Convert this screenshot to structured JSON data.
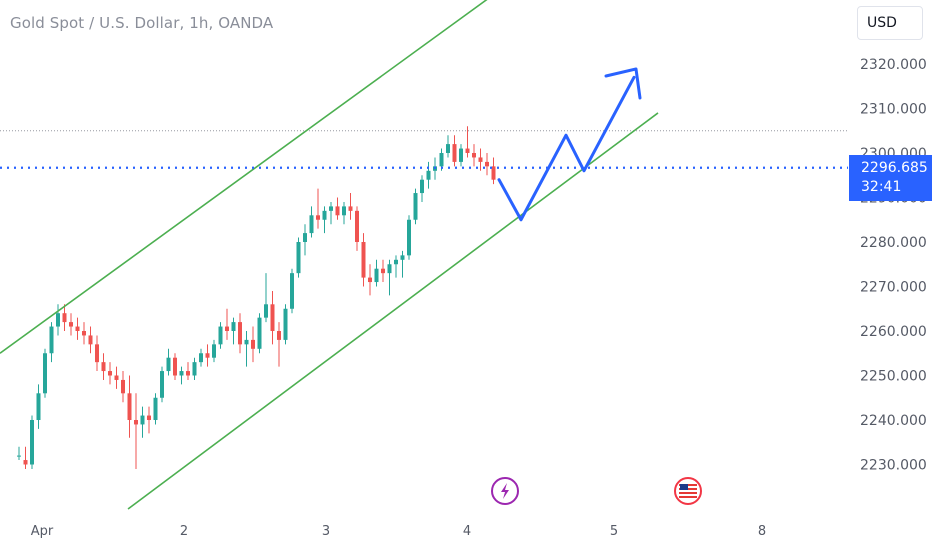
{
  "header": {
    "title": "Gold Spot / U.S. Dollar, 1h, OANDA"
  },
  "toolbar": {
    "currency_label": "USD"
  },
  "price_tag": {
    "price": "2296.685",
    "countdown": "32:41"
  },
  "colors": {
    "up": "#26a69a",
    "down": "#ef5350",
    "channel": "#4caf50",
    "projection": "#2962ff",
    "price_line": "#2962ff"
  },
  "icons": {
    "event_1": "lightning-icon",
    "event_2": "us-flag-icon"
  },
  "chart_data": {
    "type": "candlestick",
    "title": "Gold Spot / U.S. Dollar, 1h, OANDA",
    "y_ticks": [
      "2230.000",
      "2240.000",
      "2250.000",
      "2260.000",
      "2270.000",
      "2280.000",
      "2290.000",
      "2300.000",
      "2310.000",
      "2320.000"
    ],
    "x_ticks": [
      "Apr",
      "2",
      "3",
      "4",
      "5",
      "8"
    ],
    "ylim": [
      2220,
      2331
    ],
    "current_price": 2296.685,
    "dotted_high_line": 2305,
    "grid": false,
    "series": [
      {
        "values": [
          [
            2232,
            2234,
            2231,
            2232
          ],
          [
            2231,
            2234,
            2229,
            2230
          ],
          [
            2230,
            2241,
            2229,
            2240
          ],
          [
            2240,
            2248,
            2238,
            2246
          ],
          [
            2246,
            2256,
            2245,
            2255
          ],
          [
            2255,
            2262,
            2253,
            2261
          ],
          [
            2261,
            2266,
            2259,
            2264
          ],
          [
            2264,
            2266,
            2260,
            2262
          ],
          [
            2262,
            2264,
            2259,
            2261
          ],
          [
            2261,
            2263,
            2258,
            2260
          ],
          [
            2260,
            2262,
            2257,
            2259
          ],
          [
            2259,
            2261,
            2255,
            2257
          ],
          [
            2257,
            2259,
            2251,
            2253
          ],
          [
            2253,
            2255,
            2249,
            2251
          ],
          [
            2251,
            2253,
            2248,
            2250
          ],
          [
            2250,
            2252,
            2247,
            2249
          ],
          [
            2249,
            2251,
            2244,
            2246
          ],
          [
            2246,
            2250,
            2236,
            2240
          ],
          [
            2240,
            2246,
            2229,
            2239
          ],
          [
            2239,
            2243,
            2236,
            2241
          ],
          [
            2241,
            2243,
            2237,
            2240
          ],
          [
            2240,
            2246,
            2239,
            2245
          ],
          [
            2245,
            2252,
            2244,
            2251
          ],
          [
            2251,
            2256,
            2250,
            2254
          ],
          [
            2254,
            2255,
            2249,
            2250
          ],
          [
            2250,
            2252,
            2248,
            2251
          ],
          [
            2251,
            2253,
            2249,
            2250
          ],
          [
            2250,
            2254,
            2249,
            2253
          ],
          [
            2253,
            2256,
            2252,
            2255
          ],
          [
            2255,
            2257,
            2252,
            2254
          ],
          [
            2254,
            2258,
            2253,
            2257
          ],
          [
            2257,
            2262,
            2256,
            2261
          ],
          [
            2261,
            2265,
            2258,
            2260
          ],
          [
            2260,
            2263,
            2257,
            2262
          ],
          [
            2262,
            2264,
            2255,
            2257
          ],
          [
            2257,
            2260,
            2252,
            2258
          ],
          [
            2258,
            2261,
            2253,
            2256
          ],
          [
            2256,
            2264,
            2255,
            2263
          ],
          [
            2263,
            2273,
            2262,
            2266
          ],
          [
            2266,
            2269,
            2257,
            2260
          ],
          [
            2260,
            2262,
            2252,
            2258
          ],
          [
            2258,
            2266,
            2257,
            2265
          ],
          [
            2265,
            2274,
            2264,
            2273
          ],
          [
            2273,
            2281,
            2272,
            2280
          ],
          [
            2280,
            2284,
            2277,
            2282
          ],
          [
            2282,
            2288,
            2281,
            2286
          ],
          [
            2286,
            2292,
            2283,
            2285
          ],
          [
            2285,
            2288,
            2282,
            2287
          ],
          [
            2287,
            2289,
            2284,
            2288
          ],
          [
            2288,
            2290,
            2285,
            2286
          ],
          [
            2286,
            2289,
            2284,
            2288
          ],
          [
            2288,
            2291,
            2285,
            2287
          ],
          [
            2287,
            2288,
            2278,
            2280
          ],
          [
            2280,
            2282,
            2270,
            2272
          ],
          [
            2272,
            2275,
            2268,
            2271
          ],
          [
            2271,
            2276,
            2270,
            2274
          ],
          [
            2274,
            2276,
            2271,
            2273
          ],
          [
            2273,
            2276,
            2268,
            2275
          ],
          [
            2275,
            2277,
            2272,
            2276
          ],
          [
            2276,
            2278,
            2272,
            2277
          ],
          [
            2277,
            2286,
            2276,
            2285
          ],
          [
            2285,
            2292,
            2284,
            2291
          ],
          [
            2291,
            2295,
            2289,
            2294
          ],
          [
            2294,
            2298,
            2292,
            2296
          ],
          [
            2296,
            2299,
            2294,
            2297
          ],
          [
            2297,
            2301,
            2296,
            2300
          ],
          [
            2300,
            2304,
            2299,
            2302
          ],
          [
            2302,
            2304,
            2297,
            2298
          ],
          [
            2298,
            2302,
            2297,
            2301
          ],
          [
            2301,
            2306,
            2299,
            2300
          ],
          [
            2300,
            2302,
            2297,
            2299
          ],
          [
            2299,
            2301,
            2296,
            2298
          ],
          [
            2298,
            2300,
            2295,
            2297
          ],
          [
            2297,
            2299,
            2293,
            2294
          ]
        ]
      }
    ],
    "channel_lines": [
      {
        "name": "upper",
        "start": {
          "x": "Mar 31",
          "y": 2256
        },
        "end": {
          "x": "Apr 3",
          "y": 2335
        }
      },
      {
        "name": "lower",
        "start": {
          "x": "Apr 1",
          "y": 2220
        },
        "end": {
          "x": "Apr 5",
          "y": 2308
        }
      }
    ],
    "projection_path": [
      2294,
      2285,
      2304,
      2296,
      2317
    ]
  }
}
